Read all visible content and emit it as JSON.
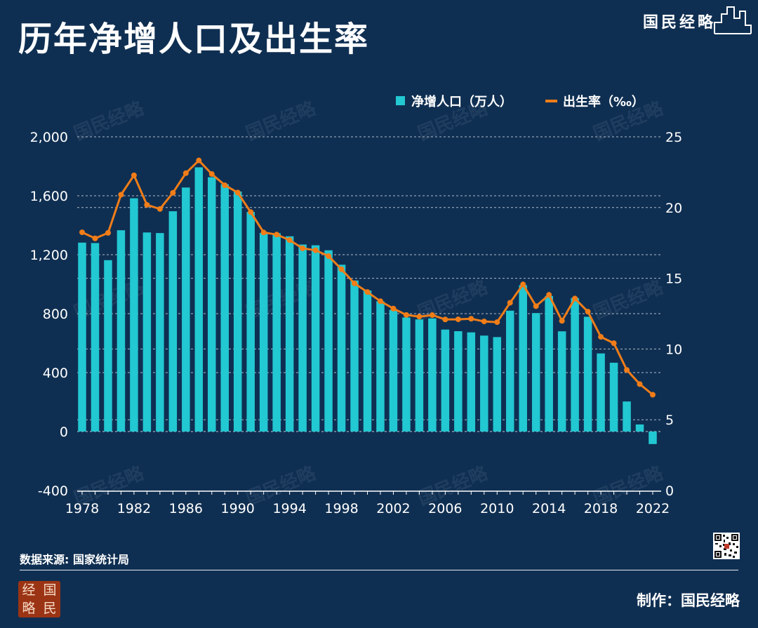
{
  "header": {
    "title": "历年净增人口及出生率",
    "brand": "国民经略"
  },
  "watermark": "国民经略",
  "footer": {
    "source": "数据来源: 国家统计局",
    "credit": "制作：国民经略",
    "seal_chars": [
      "经",
      "国",
      "略",
      "民"
    ]
  },
  "colors": {
    "background": "#0f2f52",
    "bar": "#22c8d2",
    "line": "#f07d18",
    "text": "#ffffff",
    "grid": "#d8dee6"
  },
  "chart_data": {
    "type": "bar",
    "title": "历年净增人口及出生率",
    "x": [
      1978,
      1979,
      1980,
      1981,
      1982,
      1983,
      1984,
      1985,
      1986,
      1987,
      1988,
      1989,
      1990,
      1991,
      1992,
      1993,
      1994,
      1995,
      1996,
      1997,
      1998,
      1999,
      2000,
      2001,
      2002,
      2003,
      2004,
      2005,
      2006,
      2007,
      2008,
      2009,
      2010,
      2011,
      2012,
      2013,
      2014,
      2015,
      2016,
      2017,
      2018,
      2019,
      2020,
      2021,
      2022
    ],
    "x_ticks": [
      1978,
      1982,
      1986,
      1990,
      1994,
      1998,
      2002,
      2006,
      2010,
      2014,
      2018,
      2022
    ],
    "legend_position": "top-right",
    "grid": true,
    "series": [
      {
        "name": "净增人口（万人）",
        "type": "bar",
        "axis": "left",
        "color": "#22c8d2",
        "values": [
          1282,
          1279,
          1163,
          1366,
          1583,
          1351,
          1347,
          1495,
          1656,
          1793,
          1726,
          1678,
          1629,
          1490,
          1348,
          1346,
          1325,
          1269,
          1264,
          1230,
          1132,
          1025,
          957,
          884,
          826,
          774,
          761,
          768,
          692,
          681,
          673,
          651,
          641,
          820,
          993,
          804,
          920,
          680,
          906,
          779,
          530,
          467,
          204,
          48,
          -85
        ]
      },
      {
        "name": "出生率（‰）",
        "type": "line",
        "axis": "right",
        "color": "#f07d18",
        "values": [
          18.25,
          17.82,
          18.21,
          20.91,
          22.28,
          20.19,
          19.9,
          21.04,
          22.43,
          23.33,
          22.37,
          21.58,
          21.06,
          19.68,
          18.24,
          18.09,
          17.7,
          17.12,
          16.98,
          16.57,
          15.64,
          14.64,
          14.03,
          13.38,
          12.86,
          12.41,
          12.29,
          12.4,
          12.09,
          12.1,
          12.14,
          11.95,
          11.9,
          13.27,
          14.57,
          13.03,
          13.83,
          11.99,
          13.57,
          12.64,
          10.86,
          10.41,
          8.52,
          7.52,
          6.77
        ]
      }
    ],
    "y_left": {
      "range": [
        -400,
        2000
      ],
      "ticks": [
        -400,
        0,
        400,
        800,
        1200,
        1600,
        2000
      ],
      "tick_labels": [
        "-400",
        "0",
        "400",
        "800",
        "1,200",
        "1,600",
        "2,000"
      ]
    },
    "y_right": {
      "range": [
        0,
        25
      ],
      "ticks": [
        0,
        5,
        10,
        15,
        20,
        25
      ],
      "tick_labels": [
        "0",
        "5",
        "10",
        "15",
        "20",
        "25"
      ]
    }
  }
}
